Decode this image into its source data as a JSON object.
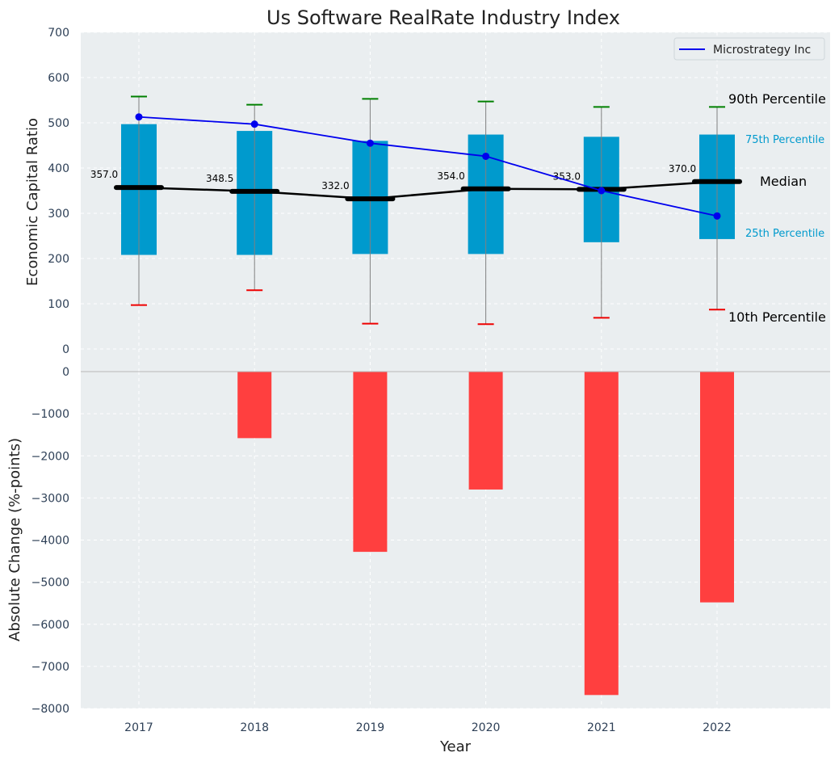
{
  "chart_data": {
    "title": "Us Software RealRate Industry Index",
    "xlabel": "Year",
    "categories": [
      "2017",
      "2018",
      "2019",
      "2020",
      "2021",
      "2022"
    ],
    "top_panel": {
      "type": "box",
      "ylabel": "Economic Capital Ratio",
      "ylim": [
        0,
        700
      ],
      "yticks": [
        "0",
        "100",
        "200",
        "300",
        "400",
        "500",
        "600",
        "700"
      ],
      "p10": [
        97,
        130,
        56,
        55,
        69,
        87
      ],
      "p25": [
        208,
        208,
        210,
        210,
        236,
        243
      ],
      "median": [
        357.0,
        348.5,
        332.0,
        354.0,
        353.0,
        370.0
      ],
      "median_labels": [
        "357.0",
        "348.5",
        "332.0",
        "354.0",
        "353.0",
        "370.0"
      ],
      "p75": [
        497,
        482,
        460,
        474,
        469,
        474
      ],
      "p90": [
        558,
        540,
        553,
        547,
        535,
        535
      ],
      "series": [
        {
          "name": "Microstrategy Inc",
          "values": [
            513,
            497,
            455,
            426,
            350,
            294
          ],
          "color": "#0000ee"
        }
      ],
      "annotations": {
        "p90": "90th Percentile",
        "p75": "75th Percentile",
        "median": "Median",
        "p25": "25th Percentile",
        "p10": "10th Percentile"
      },
      "legend_position": "top-right",
      "grid": true
    },
    "bottom_panel": {
      "type": "bar",
      "ylabel": "Absolute Change (%-points)",
      "ylim": [
        -8000,
        0
      ],
      "yticks": [
        "0",
        "−1000",
        "−2000",
        "−3000",
        "−4000",
        "−5000",
        "−6000",
        "−7000",
        "−8000"
      ],
      "values": [
        0,
        -1580,
        -4280,
        -2800,
        -7680,
        -5480
      ],
      "grid": true
    }
  },
  "colors": {
    "box": "#009acd",
    "median": "#000000",
    "series": "#0000ee",
    "p90_cap": "#008000",
    "p10_cap": "#ee0000",
    "bar": "#ff3f3f",
    "panel_bg": "#eaeef0",
    "p75_p25_text": "#009acd"
  }
}
